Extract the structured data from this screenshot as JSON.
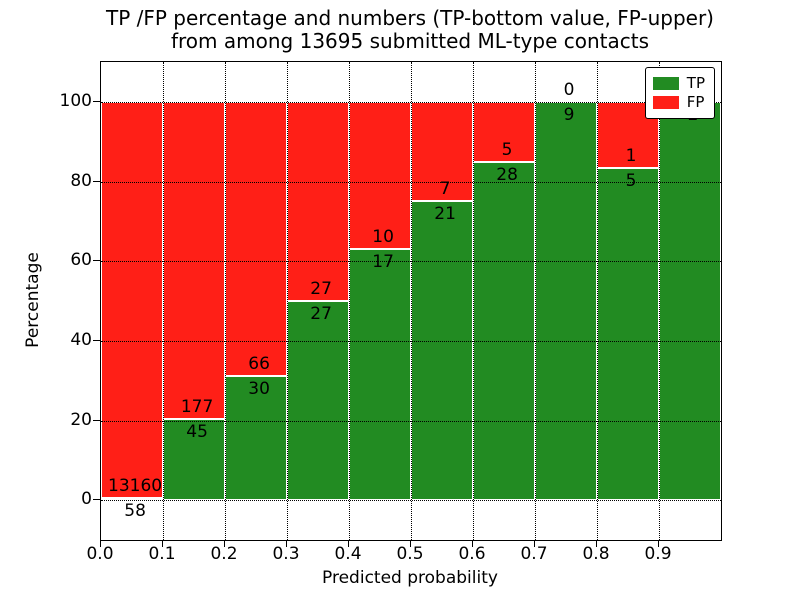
{
  "chart_data": {
    "type": "bar",
    "subtype": "stacked-percentage",
    "title_line1": "TP /FP percentage and numbers (TP-bottom value, FP-upper)",
    "title_line2": "from among 13695 submitted ML-type contacts",
    "xlabel": "Predicted probability",
    "ylabel": "Percentage",
    "categories": [
      "0.0",
      "0.1",
      "0.2",
      "0.3",
      "0.4",
      "0.5",
      "0.6",
      "0.7",
      "0.8",
      "0.9"
    ],
    "bin_width": 0.1,
    "series": [
      {
        "name": "TP",
        "color": "#228b22",
        "values": [
          58,
          45,
          30,
          27,
          17,
          21,
          28,
          9,
          5,
          2
        ]
      },
      {
        "name": "FP",
        "color": "#ff1f17",
        "values": [
          13160,
          177,
          66,
          27,
          10,
          7,
          5,
          0,
          1,
          0
        ]
      }
    ],
    "value_labels": "raw counts printed at TP/FP boundary (TP below, FP above)",
    "xlim": [
      0.0,
      1.0
    ],
    "ylim": [
      -10,
      110
    ],
    "yticks": [
      0,
      20,
      40,
      60,
      80,
      100
    ],
    "xticks": [
      "0.0",
      "0.1",
      "0.2",
      "0.3",
      "0.4",
      "0.5",
      "0.6",
      "0.7",
      "0.8",
      "0.9"
    ],
    "grid": "dotted both axes",
    "legend": {
      "position": "upper right",
      "entries": [
        {
          "label": "TP",
          "color": "#228b22"
        },
        {
          "label": "FP",
          "color": "#ff1f17"
        }
      ]
    }
  }
}
